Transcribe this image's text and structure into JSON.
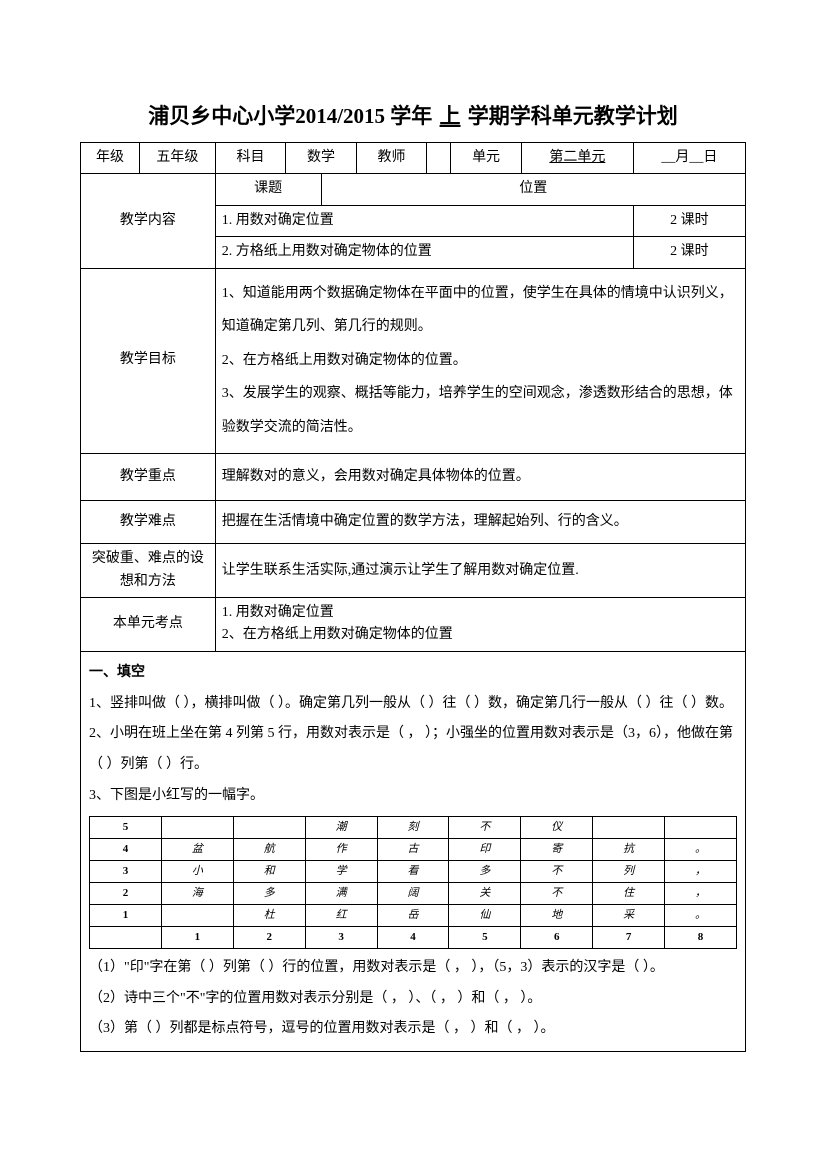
{
  "title": {
    "school": "浦贝乡中心小学",
    "year": "2014/2015",
    "yearLabel": "学年",
    "semester": "上",
    "suffix": "学期学科单元教学计划"
  },
  "headerRow": {
    "gradeLabel": "年级",
    "grade": "五年级",
    "subjectLabel": "科目",
    "subject": "数学",
    "teacherLabel": "教师",
    "teacher": "",
    "unitLabel": "单元",
    "unit": "第二单元",
    "date": "__月__日"
  },
  "content": {
    "label": "教学内容",
    "topicLabel": "课题",
    "topic": "位置",
    "item1": "1.  用数对确定位置",
    "item1Hours": "2 课时",
    "item2": "2. 方格纸上用数对确定物体的位置",
    "item2Hours": "2 课时"
  },
  "objectives": {
    "label": "教学目标",
    "text": "1、知道能用两个数据确定物体在平面中的位置，使学生在具体的情境中认识列义，知道确定第几列、第几行的规则。\n2、在方格纸上用数对确定物体的位置。\n3、发展学生的观察、概括等能力，培养学生的空间观念，渗透数形结合的思想，体验数学交流的简洁性。"
  },
  "keypoint": {
    "label": "教学重点",
    "text": "理解数对的意义，会用数对确定具体物体的位置。"
  },
  "difficulty": {
    "label": "教学难点",
    "text": "把握在生活情境中确定位置的数学方法，理解起始列、行的含义。"
  },
  "breakthrough": {
    "label": "突破重、难点的设想和方法",
    "text": "让学生联系生活实际,通过演示让学生了解用数对确定位置."
  },
  "exampoints": {
    "label": "本单元考点",
    "text": "1.  用数对确定位置\n2、在方格纸上用数对确定物体的位置"
  },
  "exercises": {
    "heading": "一、填空",
    "q1": "1、竖排叫做（    ），横排叫做（    ）。确定第几列一般从（      ）往（      ）数，确定第几行一般从（      ）往（      ）数。",
    "q2": "2、小明在班上坐在第 4 列第 5 行，用数对表示是（    ，      ）；小强坐的位置用数对表示是（3，6），他做在第（        ）列第（        ）行。",
    "q3intro": "3、下图是小红写的一幅字。",
    "poem": {
      "yLabels": [
        "5",
        "4",
        "3",
        "2",
        "1"
      ],
      "xLabels": [
        "1",
        "2",
        "3",
        "4",
        "5",
        "6",
        "7",
        "8"
      ],
      "rows": [
        [
          "",
          "",
          "潮",
          "刻",
          "不",
          "仪",
          "",
          ""
        ],
        [
          "盆",
          "航",
          "作",
          "古",
          "印",
          "寄",
          "抗",
          "。"
        ],
        [
          "小",
          "和",
          "学",
          "看",
          "多",
          "不",
          "列",
          "，"
        ],
        [
          "海",
          "多",
          "满",
          "阔",
          "关",
          "不",
          "住",
          "，"
        ],
        [
          "",
          "杜",
          "红",
          "岳",
          "仙",
          "地",
          "采",
          "。"
        ]
      ]
    },
    "q3a": "（1）\"印\"字在第（        ）列第（        ）行的位置，用数对表示是（    ，    ），（5，3）表示的汉字是（        ）。",
    "q3b": "（2）诗中三个\"不\"字的位置用数对表示分别是（    ，    ）、（    ，    ）和（    ，      ）。",
    "q3c": "（3）第（      ）列都是标点符号，逗号的位置用数对表示是（    ，    ）和（    ，    ）。"
  }
}
